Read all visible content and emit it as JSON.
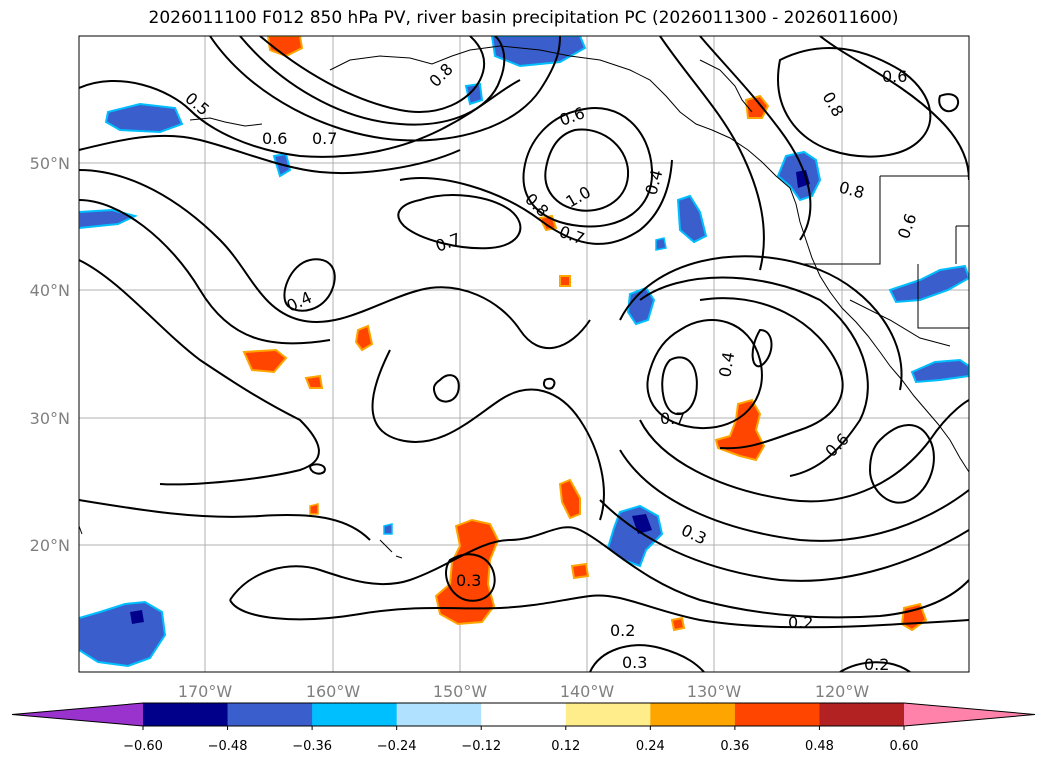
{
  "title": "2026011100 F012 850 hPa PV, river basin precipitation PC (2026011300 - 2026011600)",
  "lon_ticks": [
    "170°W",
    "160°W",
    "150°W",
    "140°W",
    "130°W",
    "120°W"
  ],
  "lat_ticks": [
    "50°N",
    "40°N",
    "30°N",
    "20°N"
  ],
  "contour_labels": [
    "0.5",
    "0.6",
    "0.7",
    "0.8",
    "1.0",
    "0.8",
    "0.7",
    "0.4",
    "0.7",
    "0.4",
    "0.6",
    "0.6",
    "0.8",
    "0.7",
    "0.6",
    "0.4",
    "0.3",
    "0.3",
    "0.2",
    "0.3",
    "0.2",
    "0.2",
    "0.8",
    "0.6"
  ],
  "colorbar": {
    "ticks": [
      "−0.60",
      "−0.48",
      "−0.36",
      "−0.24",
      "−0.12",
      "0.12",
      "0.24",
      "0.36",
      "0.48",
      "0.60"
    ],
    "colors": [
      "#9a32cd",
      "#00008b",
      "#3a5fcd",
      "#00bfff",
      "#b0e2ff",
      "#ffffff",
      "#ffec8b",
      "#ffa500",
      "#ff4500",
      "#b22222",
      "#ff82ab"
    ]
  }
}
